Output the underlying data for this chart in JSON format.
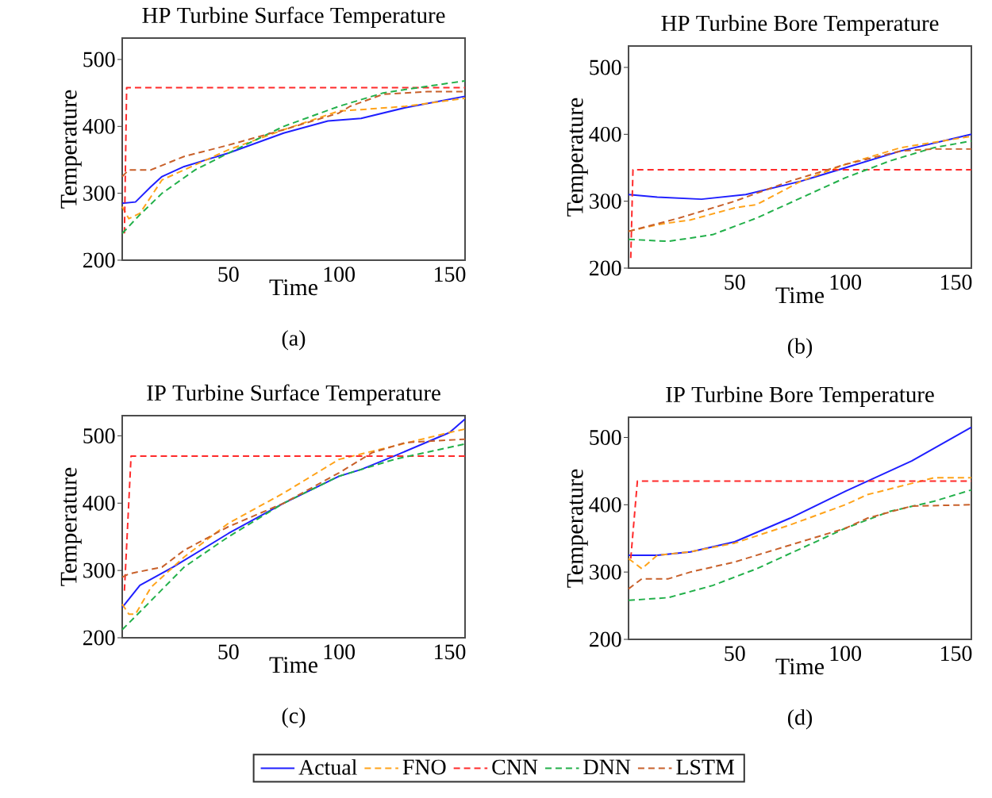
{
  "chart_data": [
    {
      "type": "line",
      "title": "HP Turbine Surface Temperature",
      "xlabel": "Time",
      "ylabel": "Temperature",
      "annotations": [
        "(a)"
      ],
      "xlim": [
        2,
        157
      ],
      "xticks": [
        50,
        100,
        150
      ],
      "ylim": [
        200,
        532
      ],
      "yticks": [
        200,
        300,
        400,
        500
      ],
      "series": [
        {
          "color": "#1f1fff",
          "line_style": "solid",
          "x": [
            2,
            8,
            15,
            20,
            30,
            50,
            75,
            95,
            110,
            130,
            157
          ],
          "values": [
            285,
            287,
            310,
            325,
            340,
            360,
            390,
            408,
            412,
            428,
            445
          ]
        },
        {
          "color": "#ffa31a",
          "line_style": "dashed",
          "x": [
            2,
            5,
            10,
            20,
            30,
            50,
            75,
            100,
            110,
            130,
            157
          ],
          "values": [
            280,
            262,
            270,
            320,
            335,
            365,
            395,
            423,
            425,
            430,
            442
          ]
        },
        {
          "color": "#ff2a2a",
          "line_style": "dashed",
          "x": [
            3,
            4,
            157
          ],
          "values": [
            240,
            458,
            458
          ]
        },
        {
          "color": "#22b04a",
          "line_style": "dashed",
          "x": [
            2,
            10,
            20,
            35,
            50,
            75,
            100,
            120,
            140,
            157
          ],
          "values": [
            240,
            268,
            300,
            335,
            360,
            400,
            430,
            450,
            460,
            468
          ]
        },
        {
          "color": "#c8602a",
          "line_style": "dashed",
          "x": [
            2,
            5,
            15,
            30,
            50,
            75,
            100,
            105,
            120,
            140,
            157
          ],
          "values": [
            325,
            335,
            335,
            355,
            372,
            395,
            420,
            430,
            448,
            452,
            452
          ]
        }
      ]
    },
    {
      "type": "line",
      "title": "HP Turbine Bore Temperature",
      "xlabel": "Time",
      "ylabel": "Temperature",
      "annotations": [
        "(b)"
      ],
      "xlim": [
        2,
        157
      ],
      "xticks": [
        50,
        100,
        150
      ],
      "ylim": [
        200,
        532
      ],
      "yticks": [
        200,
        300,
        400,
        500
      ],
      "series": [
        {
          "color": "#1f1fff",
          "line_style": "solid",
          "x": [
            2,
            15,
            35,
            55,
            80,
            100,
            125,
            157
          ],
          "values": [
            310,
            306,
            303,
            310,
            330,
            350,
            375,
            400
          ]
        },
        {
          "color": "#ffa31a",
          "line_style": "dashed",
          "x": [
            2,
            15,
            30,
            50,
            60,
            80,
            100,
            125,
            157
          ],
          "values": [
            255,
            265,
            272,
            290,
            295,
            330,
            355,
            380,
            397
          ]
        },
        {
          "color": "#ff2a2a",
          "line_style": "dashed",
          "x": [
            3,
            4,
            157
          ],
          "values": [
            215,
            347,
            347
          ]
        },
        {
          "color": "#22b04a",
          "line_style": "dashed",
          "x": [
            2,
            20,
            40,
            60,
            80,
            100,
            120,
            140,
            157
          ],
          "values": [
            243,
            240,
            250,
            275,
            305,
            335,
            360,
            380,
            390
          ]
        },
        {
          "color": "#c8602a",
          "line_style": "dashed",
          "x": [
            2,
            25,
            50,
            75,
            100,
            125,
            140,
            157
          ],
          "values": [
            255,
            275,
            300,
            330,
            355,
            375,
            378,
            378
          ]
        }
      ]
    },
    {
      "type": "line",
      "title": "IP Turbine Surface Temperature",
      "xlabel": "Time",
      "ylabel": "Temperature",
      "annotations": [
        "(c)"
      ],
      "xlim": [
        2,
        157
      ],
      "xticks": [
        50,
        100,
        150
      ],
      "ylim": [
        200,
        530
      ],
      "yticks": [
        200,
        300,
        400,
        500
      ],
      "series": [
        {
          "color": "#1f1fff",
          "line_style": "solid",
          "x": [
            2,
            10,
            25,
            50,
            75,
            100,
            110,
            125,
            150,
            157
          ],
          "values": [
            245,
            278,
            305,
            355,
            400,
            440,
            450,
            470,
            505,
            525
          ]
        },
        {
          "color": "#ffa31a",
          "line_style": "dashed",
          "x": [
            2,
            5,
            8,
            15,
            30,
            50,
            75,
            100,
            125,
            150,
            157
          ],
          "values": [
            250,
            235,
            235,
            275,
            320,
            370,
            415,
            465,
            485,
            505,
            510
          ]
        },
        {
          "color": "#ff2a2a",
          "line_style": "dashed",
          "x": [
            3,
            6,
            157
          ],
          "values": [
            270,
            470,
            470
          ]
        },
        {
          "color": "#22b04a",
          "line_style": "dashed",
          "x": [
            2,
            15,
            30,
            50,
            75,
            100,
            125,
            157
          ],
          "values": [
            212,
            255,
            305,
            350,
            400,
            440,
            465,
            488
          ]
        },
        {
          "color": "#c8602a",
          "line_style": "dashed",
          "x": [
            2,
            5,
            20,
            30,
            50,
            75,
            100,
            115,
            130,
            157
          ],
          "values": [
            290,
            295,
            305,
            330,
            365,
            400,
            445,
            475,
            490,
            495
          ]
        }
      ]
    },
    {
      "type": "line",
      "title": "IP Turbine Bore Temperature",
      "xlabel": "Time",
      "ylabel": "Temperature",
      "annotations": [
        "(d)"
      ],
      "legend": "bottom",
      "xlim": [
        2,
        157
      ],
      "xticks": [
        50,
        100,
        150
      ],
      "ylim": [
        200,
        530
      ],
      "yticks": [
        200,
        300,
        400,
        500
      ],
      "series": [
        {
          "name": "Actual",
          "color": "#1f1fff",
          "line_style": "solid",
          "x": [
            2,
            15,
            30,
            50,
            75,
            100,
            110,
            130,
            157
          ],
          "values": [
            325,
            325,
            330,
            345,
            380,
            420,
            435,
            465,
            515
          ]
        },
        {
          "name": "FNO",
          "color": "#ffa31a",
          "line_style": "dashed",
          "x": [
            2,
            8,
            15,
            30,
            50,
            75,
            100,
            110,
            140,
            157
          ],
          "values": [
            320,
            305,
            325,
            330,
            343,
            370,
            400,
            415,
            440,
            440
          ]
        },
        {
          "name": "CNN",
          "color": "#ff2a2a",
          "line_style": "dashed",
          "x": [
            3,
            6,
            157
          ],
          "values": [
            320,
            435,
            435
          ]
        },
        {
          "name": "DNN",
          "color": "#22b04a",
          "line_style": "dashed",
          "x": [
            2,
            20,
            40,
            60,
            80,
            100,
            120,
            140,
            157
          ],
          "values": [
            258,
            262,
            280,
            305,
            335,
            365,
            390,
            405,
            422
          ]
        },
        {
          "name": "LSTM",
          "color": "#c8602a",
          "line_style": "dashed",
          "x": [
            2,
            8,
            20,
            30,
            50,
            75,
            100,
            110,
            130,
            157
          ],
          "values": [
            275,
            290,
            290,
            300,
            315,
            340,
            365,
            380,
            398,
            400
          ]
        }
      ]
    }
  ]
}
